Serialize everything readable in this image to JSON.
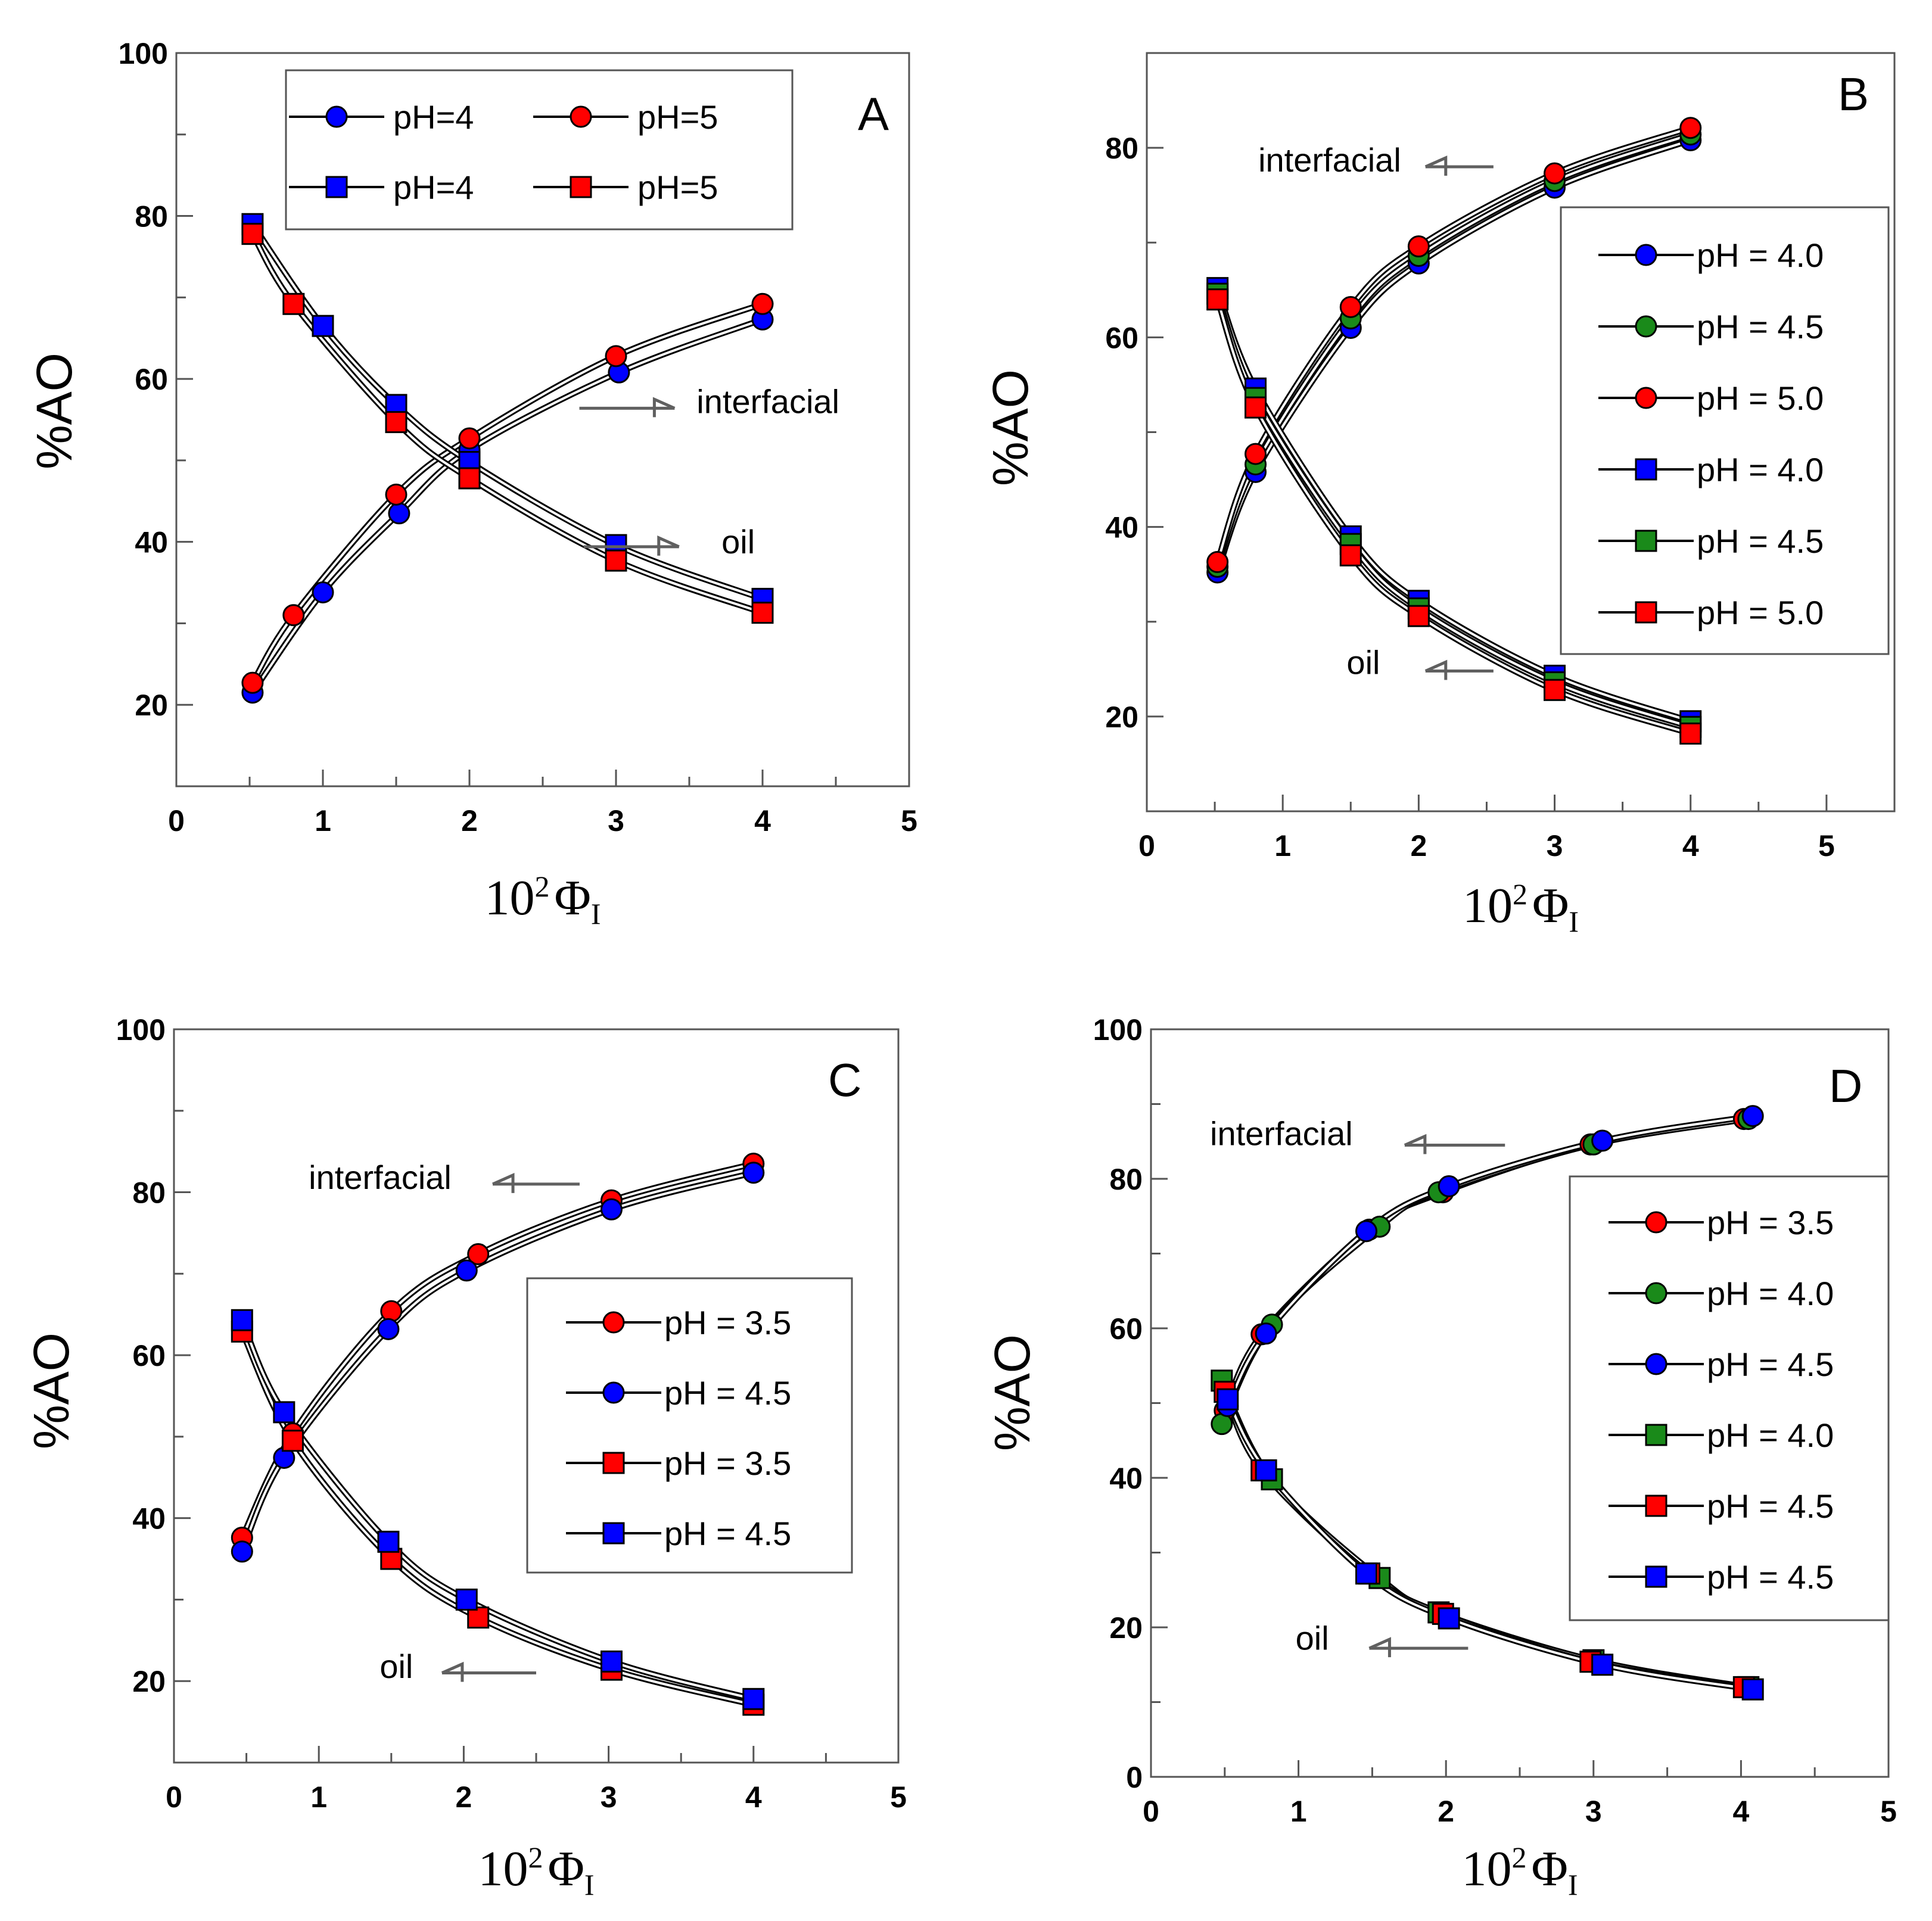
{
  "figure": {
    "xlabel_base": "10",
    "xlabel_sup": "2",
    "xlabel_sym": "Φ",
    "xlabel_sub_roman": "I",
    "ylabel": "%AO"
  },
  "chart_data": [
    {
      "type": "line",
      "panel": "A",
      "xlim": [
        0,
        5
      ],
      "ylim": [
        10,
        100
      ],
      "xticks": [
        0,
        1,
        2,
        3,
        4,
        5
      ],
      "yticks": [
        20,
        40,
        60,
        80,
        100
      ],
      "xlabel": "10² Φ_I",
      "ylabel": "%AO",
      "legend_placement": "top-center",
      "legend_columns": 2,
      "series": [
        {
          "name": "pH=4",
          "marker": "circle",
          "color": "#0000ff",
          "x": [
            0.52,
            1.0,
            1.52,
            2.0,
            3.02,
            4.0
          ],
          "y": [
            21.5,
            33.8,
            43.5,
            51.3,
            60.8,
            67.3
          ]
        },
        {
          "name": "pH=5",
          "marker": "circle",
          "color": "#ff0000",
          "x": [
            0.52,
            0.8,
            1.5,
            2.0,
            3.0,
            4.0
          ],
          "y": [
            22.7,
            31.0,
            45.8,
            52.7,
            62.8,
            69.2
          ]
        },
        {
          "name": "pH=4",
          "marker": "square",
          "color": "#0000ff",
          "x": [
            0.52,
            1.0,
            1.5,
            2.0,
            3.0,
            4.0
          ],
          "y": [
            79.0,
            66.5,
            56.8,
            49.8,
            39.6,
            33.0
          ]
        },
        {
          "name": "pH=5",
          "marker": "square",
          "color": "#ff0000",
          "x": [
            0.52,
            0.8,
            1.5,
            2.0,
            3.0,
            4.0
          ],
          "y": [
            77.8,
            69.2,
            54.7,
            47.8,
            37.7,
            31.3
          ]
        }
      ],
      "annotations": [
        {
          "text": "interfacial",
          "x": 3.55,
          "y": 55.8,
          "arrow": "right",
          "arrow_from_x": 2.75,
          "arrow_to_x": 3.4,
          "arrow_y": 56.4
        },
        {
          "text": "oil",
          "x": 3.72,
          "y": 38.6,
          "arrow": "right",
          "arrow_from_x": 2.78,
          "arrow_to_x": 3.43,
          "arrow_y": 39.4
        }
      ],
      "panel_letter": "A"
    },
    {
      "type": "line",
      "panel": "B",
      "xlim": [
        0,
        5.5
      ],
      "ylim": [
        10,
        90
      ],
      "xticks": [
        0,
        1,
        2,
        3,
        4,
        5
      ],
      "yticks": [
        20,
        40,
        60,
        80
      ],
      "xlabel": "10² Φ_I",
      "ylabel": "%AO",
      "legend_placement": "right",
      "legend_columns": 1,
      "series": [
        {
          "name": "pH = 4.0",
          "marker": "circle",
          "color": "#0000ff",
          "x": [
            0.52,
            0.8,
            1.5,
            2.0,
            3.0,
            4.0
          ],
          "y": [
            35.2,
            45.8,
            61.0,
            67.8,
            75.8,
            80.8
          ]
        },
        {
          "name": "pH = 4.5",
          "marker": "circle",
          "color": "#1a8a1a",
          "x": [
            0.52,
            0.8,
            1.5,
            2.0,
            3.0,
            4.0
          ],
          "y": [
            35.8,
            46.6,
            62.0,
            68.6,
            76.5,
            81.4
          ]
        },
        {
          "name": "pH = 5.0",
          "marker": "circle",
          "color": "#ff0000",
          "x": [
            0.52,
            0.8,
            1.5,
            2.0,
            3.0,
            4.0
          ],
          "y": [
            36.3,
            47.7,
            63.2,
            69.6,
            77.3,
            82.1
          ]
        },
        {
          "name": "pH = 4.0",
          "marker": "square",
          "color": "#0000ff",
          "x": [
            0.52,
            0.8,
            1.5,
            2.0,
            3.0,
            4.0
          ],
          "y": [
            65.2,
            54.6,
            39.0,
            32.2,
            24.3,
            19.5
          ]
        },
        {
          "name": "pH = 4.5",
          "marker": "square",
          "color": "#1a8a1a",
          "x": [
            0.52,
            0.8,
            1.5,
            2.0,
            3.0,
            4.0
          ],
          "y": [
            64.6,
            53.6,
            38.2,
            31.4,
            23.6,
            18.9
          ]
        },
        {
          "name": "pH = 5.0",
          "marker": "square",
          "color": "#ff0000",
          "x": [
            0.52,
            0.8,
            1.5,
            2.0,
            3.0,
            4.0
          ],
          "y": [
            64.0,
            52.6,
            37.0,
            30.6,
            22.8,
            18.2
          ]
        }
      ],
      "annotations": [
        {
          "text": "interfacial",
          "x": 0.82,
          "y": 77.5,
          "arrow": "left",
          "arrow_from_x": 2.55,
          "arrow_to_x": 2.05,
          "arrow_y": 78.0
        },
        {
          "text": "oil",
          "x": 1.47,
          "y": 24.5,
          "arrow": "left",
          "arrow_from_x": 2.55,
          "arrow_to_x": 2.05,
          "arrow_y": 24.8
        }
      ],
      "panel_letter": "B"
    },
    {
      "type": "line",
      "panel": "C",
      "xlim": [
        0,
        5
      ],
      "ylim": [
        10,
        100
      ],
      "xticks": [
        0,
        1,
        2,
        3,
        4,
        5
      ],
      "yticks": [
        20,
        40,
        60,
        80,
        100
      ],
      "xlabel": "10² Φ_I",
      "ylabel": "%AO",
      "legend_placement": "right",
      "legend_columns": 1,
      "series": [
        {
          "name": "pH = 3.5",
          "marker": "circle",
          "color": "#ff0000",
          "x": [
            0.47,
            0.82,
            1.5,
            2.1,
            3.02,
            4.0
          ],
          "y": [
            37.6,
            50.4,
            65.4,
            72.4,
            79.0,
            83.5
          ]
        },
        {
          "name": "pH = 4.5",
          "marker": "circle",
          "color": "#0000ff",
          "x": [
            0.47,
            0.76,
            1.48,
            2.02,
            3.02,
            4.0
          ],
          "y": [
            35.9,
            47.4,
            63.2,
            70.4,
            77.9,
            82.4
          ]
        },
        {
          "name": "pH = 3.5",
          "marker": "square",
          "color": "#ff0000",
          "x": [
            0.47,
            0.82,
            1.5,
            2.1,
            3.02,
            4.0
          ],
          "y": [
            62.9,
            49.5,
            35.0,
            27.8,
            21.4,
            17.1
          ]
        },
        {
          "name": "pH = 4.5",
          "marker": "square",
          "color": "#0000ff",
          "x": [
            0.47,
            0.76,
            1.48,
            2.02,
            3.02,
            4.0
          ],
          "y": [
            64.3,
            53.0,
            37.1,
            30.0,
            22.4,
            17.8
          ]
        }
      ],
      "annotations": [
        {
          "text": "interfacial",
          "x": 0.93,
          "y": 80.4,
          "arrow": "left",
          "arrow_from_x": 2.8,
          "arrow_to_x": 2.2,
          "arrow_y": 81.0
        },
        {
          "text": "oil",
          "x": 1.42,
          "y": 20.4,
          "arrow": "left",
          "arrow_from_x": 2.5,
          "arrow_to_x": 1.85,
          "arrow_y": 21.0
        }
      ],
      "panel_letter": "C"
    },
    {
      "type": "line",
      "panel": "D",
      "xlim": [
        0,
        5
      ],
      "ylim": [
        0,
        100
      ],
      "xticks": [
        0,
        1,
        2,
        3,
        4,
        5
      ],
      "yticks": [
        0,
        20,
        40,
        60,
        80,
        100
      ],
      "xlabel": "10² Φ_I",
      "ylabel": "%AO",
      "legend_placement": "right",
      "legend_columns": 1,
      "series": [
        {
          "name": "pH = 3.5",
          "marker": "circle",
          "color": "#ff0000",
          "x": [
            0.5,
            0.75,
            1.48,
            1.98,
            2.98,
            4.02
          ],
          "y": [
            49.0,
            59.2,
            73.2,
            78.2,
            84.6,
            88.0
          ]
        },
        {
          "name": "pH = 4.0",
          "marker": "circle",
          "color": "#1a8a1a",
          "x": [
            0.48,
            0.82,
            1.55,
            1.95,
            3.0,
            4.05
          ],
          "y": [
            47.2,
            60.5,
            73.6,
            78.2,
            84.6,
            88.0
          ]
        },
        {
          "name": "pH = 4.5",
          "marker": "circle",
          "color": "#0000ff",
          "x": [
            0.52,
            0.78,
            1.46,
            2.02,
            3.06,
            4.08
          ],
          "y": [
            49.6,
            59.3,
            73.0,
            79.0,
            85.1,
            88.4
          ]
        },
        {
          "name": "pH = 4.0",
          "marker": "square",
          "color": "#1a8a1a",
          "x": [
            0.48,
            0.82,
            1.55,
            1.95,
            3.0,
            4.05
          ],
          "y": [
            53.0,
            39.8,
            26.6,
            22.0,
            15.6,
            12.0
          ]
        },
        {
          "name": "pH = 4.5",
          "marker": "square",
          "color": "#ff0000",
          "x": [
            0.5,
            0.75,
            1.48,
            1.98,
            2.98,
            4.02
          ],
          "y": [
            51.5,
            41.0,
            27.2,
            21.8,
            15.4,
            12.0
          ]
        },
        {
          "name": "pH = 4.5",
          "marker": "square",
          "color": "#0000ff",
          "x": [
            0.52,
            0.78,
            1.46,
            2.02,
            3.06,
            4.08
          ],
          "y": [
            50.5,
            41.0,
            27.2,
            21.2,
            15.0,
            11.7
          ]
        }
      ],
      "annotations": [
        {
          "text": "interfacial",
          "x": 0.4,
          "y": 84.5,
          "arrow": "left",
          "arrow_from_x": 2.4,
          "arrow_to_x": 1.72,
          "arrow_y": 84.5
        },
        {
          "text": "oil",
          "x": 0.98,
          "y": 17.0,
          "arrow": "left",
          "arrow_from_x": 2.15,
          "arrow_to_x": 1.48,
          "arrow_y": 17.2
        }
      ],
      "panel_letter": "D"
    }
  ]
}
